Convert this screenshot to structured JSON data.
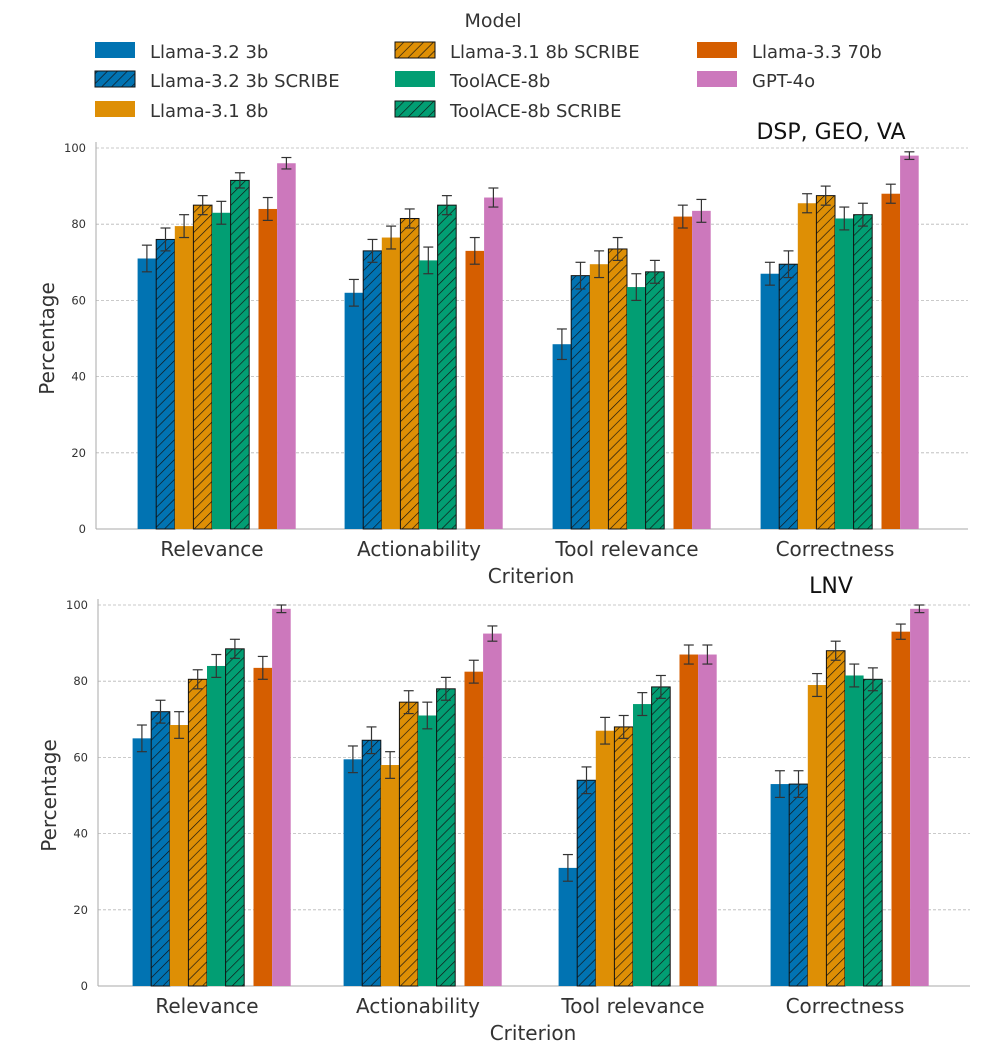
{
  "legend": {
    "title": "Model",
    "entries": [
      {
        "label": "Llama-3.2 3b",
        "color": "#0173b2",
        "hatch": false
      },
      {
        "label": "Llama-3.2 3b SCRIBE",
        "color": "#0173b2",
        "hatch": true
      },
      {
        "label": "Llama-3.1 8b",
        "color": "#de8f05",
        "hatch": false
      },
      {
        "label": "Llama-3.1 8b SCRIBE",
        "color": "#de8f05",
        "hatch": true
      },
      {
        "label": "ToolACE-8b",
        "color": "#029e73",
        "hatch": false
      },
      {
        "label": "ToolACE-8b SCRIBE",
        "color": "#029e73",
        "hatch": true
      },
      {
        "label": "Llama-3.3 70b",
        "color": "#d55e00",
        "hatch": false
      },
      {
        "label": "GPT-4o",
        "color": "#cc78bc",
        "hatch": false
      }
    ]
  },
  "chart_data": [
    {
      "type": "bar",
      "title": "DSP, GEO, VA",
      "xlabel": "Criterion",
      "ylabel": "Percentage",
      "ylim": [
        0,
        100
      ],
      "yticks": [
        "0",
        "20",
        "40",
        "60",
        "80",
        "100"
      ],
      "grid": true,
      "categories": [
        "Relevance",
        "Actionability",
        "Tool relevance",
        "Correctness"
      ],
      "series": [
        {
          "name": "Llama-3.2 3b",
          "values": [
            71,
            62,
            48.5,
            67
          ],
          "errors": [
            3.5,
            3.5,
            4,
            3
          ]
        },
        {
          "name": "Llama-3.2 3b SCRIBE",
          "values": [
            76,
            73,
            66.5,
            69.5
          ],
          "errors": [
            3,
            3,
            3.5,
            3.5
          ]
        },
        {
          "name": "Llama-3.1 8b",
          "values": [
            79.5,
            76.5,
            69.5,
            85.5
          ],
          "errors": [
            3,
            3,
            3.5,
            2.5
          ]
        },
        {
          "name": "Llama-3.1 8b SCRIBE",
          "values": [
            85,
            81.5,
            73.5,
            87.5
          ],
          "errors": [
            2.5,
            2.5,
            3,
            2.5
          ]
        },
        {
          "name": "ToolACE-8b",
          "values": [
            83,
            70.5,
            63.5,
            81.5
          ],
          "errors": [
            3,
            3.5,
            3.5,
            3
          ]
        },
        {
          "name": "ToolACE-8b SCRIBE",
          "values": [
            91.5,
            85,
            67.5,
            82.5
          ],
          "errors": [
            2,
            2.5,
            3,
            3
          ]
        },
        {
          "name": "Llama-3.3 70b",
          "values": [
            84,
            73,
            82,
            88
          ],
          "errors": [
            3,
            3.5,
            3,
            2.5
          ]
        },
        {
          "name": "GPT-4o",
          "values": [
            96,
            87,
            83.5,
            98
          ],
          "errors": [
            1.5,
            2.5,
            3,
            1
          ]
        }
      ]
    },
    {
      "type": "bar",
      "title": "LNV",
      "xlabel": "Criterion",
      "ylabel": "Percentage",
      "ylim": [
        0,
        100
      ],
      "yticks": [
        "0",
        "20",
        "40",
        "60",
        "80",
        "100"
      ],
      "grid": true,
      "categories": [
        "Relevance",
        "Actionability",
        "Tool relevance",
        "Correctness"
      ],
      "series": [
        {
          "name": "Llama-3.2 3b",
          "values": [
            65,
            59.5,
            31,
            53
          ],
          "errors": [
            3.5,
            3.5,
            3.5,
            3.5
          ]
        },
        {
          "name": "Llama-3.2 3b SCRIBE",
          "values": [
            72,
            64.5,
            54,
            53
          ],
          "errors": [
            3,
            3.5,
            3.5,
            3.5
          ]
        },
        {
          "name": "Llama-3.1 8b",
          "values": [
            68.5,
            58,
            67,
            79
          ],
          "errors": [
            3.5,
            3.5,
            3.5,
            3
          ]
        },
        {
          "name": "Llama-3.1 8b SCRIBE",
          "values": [
            80.5,
            74.5,
            68,
            88
          ],
          "errors": [
            2.5,
            3,
            3,
            2.5
          ]
        },
        {
          "name": "ToolACE-8b",
          "values": [
            84,
            71,
            74,
            81.5
          ],
          "errors": [
            3,
            3.5,
            3,
            3
          ]
        },
        {
          "name": "ToolACE-8b SCRIBE",
          "values": [
            88.5,
            78,
            78.5,
            80.5
          ],
          "errors": [
            2.5,
            3,
            3,
            3
          ]
        },
        {
          "name": "Llama-3.3 70b",
          "values": [
            83.5,
            82.5,
            87,
            93
          ],
          "errors": [
            3,
            3,
            2.5,
            2
          ]
        },
        {
          "name": "GPT-4o",
          "values": [
            99,
            92.5,
            87,
            99
          ],
          "errors": [
            1,
            2,
            2.5,
            1
          ]
        }
      ]
    }
  ]
}
